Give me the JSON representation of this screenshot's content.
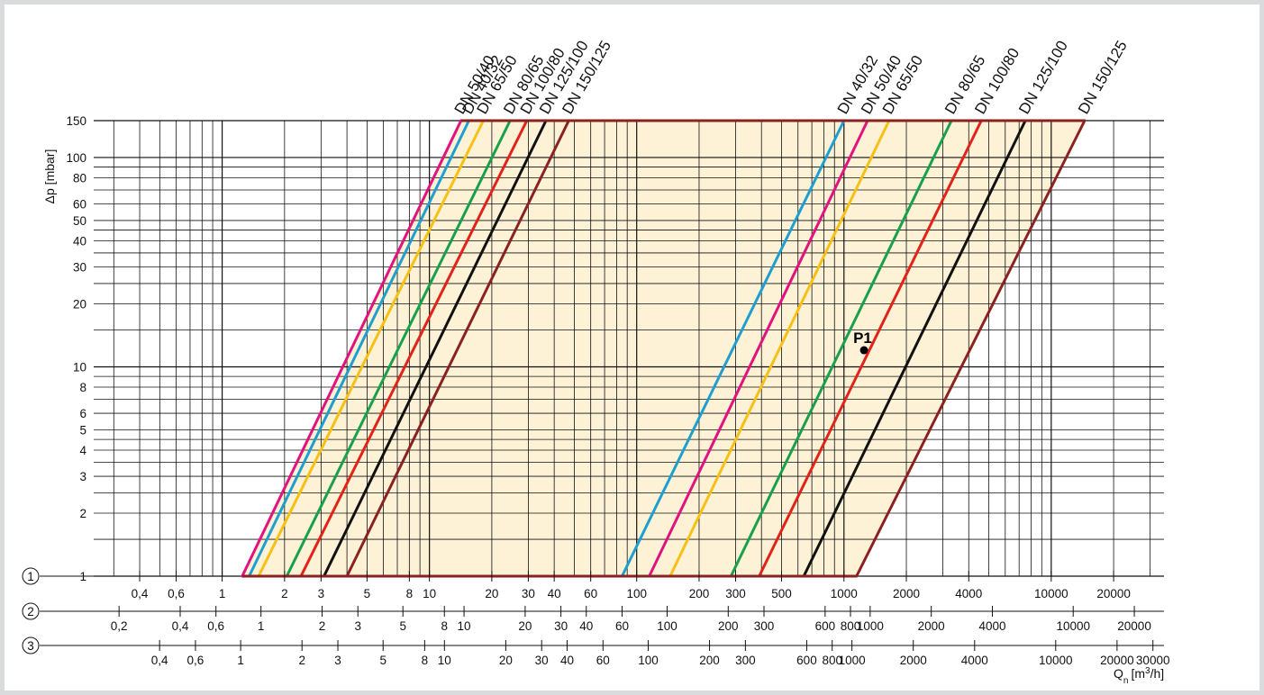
{
  "chart_data": {
    "type": "line",
    "ylabel": "Δp [mbar]",
    "xlabel": "Q",
    "xlabel_sub": "n",
    "xlabel_unit": "[m",
    "xlabel_sup": "3",
    "xlabel_tail": "/h]",
    "y_scale": "log",
    "ylim": [
      1,
      150
    ],
    "y_tick_labels": [
      "1",
      "2",
      "3",
      "4",
      "5",
      "6",
      "8",
      "10",
      "20",
      "30",
      "40",
      "50",
      "60",
      "80",
      "100",
      "150"
    ],
    "y_tick_values": [
      1,
      2,
      3,
      4,
      5,
      6,
      8,
      10,
      20,
      30,
      40,
      50,
      60,
      80,
      100,
      150
    ],
    "grid": true,
    "shaded_area_color": "#fdf1d6",
    "scale_markers": [
      "1",
      "2",
      "3"
    ],
    "x_scales": [
      {
        "marker": "1",
        "range": [
          0.24,
          35000
        ],
        "labels": [
          "0,4",
          "0,6",
          "1",
          "2",
          "3",
          "5",
          "8",
          "10",
          "20",
          "30",
          "40",
          "60",
          "100",
          "200",
          "300",
          "500",
          "1000",
          "2000",
          "4000",
          "10000",
          "20000"
        ],
        "values": [
          0.4,
          0.6,
          1,
          2,
          3,
          5,
          8,
          10,
          20,
          30,
          40,
          60,
          100,
          200,
          300,
          500,
          1000,
          2000,
          4000,
          10000,
          20000
        ]
      },
      {
        "marker": "2",
        "range": [
          0.15,
          28000
        ],
        "labels": [
          "0,2",
          "0,4",
          "0,6",
          "1",
          "2",
          "3",
          "5",
          "8",
          "10",
          "20",
          "30",
          "40",
          "60",
          "100",
          "200",
          "300",
          "600",
          "800",
          "1000",
          "2000",
          "4000",
          "10000",
          "20000"
        ],
        "values": [
          0.2,
          0.4,
          0.6,
          1,
          2,
          3,
          5,
          8,
          10,
          20,
          30,
          40,
          60,
          100,
          200,
          300,
          600,
          800,
          1000,
          2000,
          4000,
          10000,
          20000
        ]
      },
      {
        "marker": "3",
        "range": [
          0.19,
          34000
        ],
        "labels": [
          "0,4",
          "0,6",
          "1",
          "2",
          "3",
          "5",
          "8",
          "10",
          "20",
          "30",
          "40",
          "60",
          "100",
          "200",
          "300",
          "600",
          "800",
          "1000",
          "2000",
          "4000",
          "10000",
          "20000",
          "30000"
        ],
        "values": [
          0.4,
          0.6,
          1,
          2,
          3,
          5,
          8,
          10,
          20,
          30,
          40,
          60,
          100,
          200,
          300,
          600,
          800,
          1000,
          2000,
          4000,
          10000,
          20000,
          30000
        ]
      }
    ],
    "series": [
      {
        "name": "DN 50/40",
        "color": "#e0137f",
        "x_at_1": 1.25,
        "x_at_150": 14.2
      },
      {
        "name": "DN 40/32",
        "color": "#1e9fd0",
        "x_at_1": 1.35,
        "x_at_150": 15.5
      },
      {
        "name": "DN 65/50",
        "color": "#f6c114",
        "x_at_1": 1.5,
        "x_at_150": 18.2
      },
      {
        "name": "DN 80/65",
        "color": "#18a04c",
        "x_at_1": 2.05,
        "x_at_150": 24.5
      },
      {
        "name": "DN 100/80",
        "color": "#e2231a",
        "x_at_1": 2.4,
        "x_at_150": 29.5
      },
      {
        "name": "DN 125/100",
        "color": "#111111",
        "x_at_1": 3.1,
        "x_at_150": 36.5
      },
      {
        "name": "DN 150/125",
        "color": "#8b2222",
        "x_at_1": 4.0,
        "x_at_150": 47.0
      },
      {
        "name": "DN 40/32",
        "color": "#1e9fd0",
        "x_at_1": 85,
        "x_at_150": 1000
      },
      {
        "name": "DN 50/40",
        "color": "#e0137f",
        "x_at_1": 115,
        "x_at_150": 1300
      },
      {
        "name": "DN 65/50",
        "color": "#f6c114",
        "x_at_1": 145,
        "x_at_150": 1650
      },
      {
        "name": "DN 80/65",
        "color": "#18a04c",
        "x_at_1": 285,
        "x_at_150": 3300
      },
      {
        "name": "DN 100/80",
        "color": "#e2231a",
        "x_at_1": 390,
        "x_at_150": 4600
      },
      {
        "name": "DN 125/100",
        "color": "#111111",
        "x_at_1": 640,
        "x_at_150": 7500
      },
      {
        "name": "DN 150/125",
        "color": "#8b2222",
        "x_at_1": 1150,
        "x_at_150": 14500
      }
    ],
    "annotations": [
      {
        "label": "P1",
        "x": 1250,
        "y": 12
      }
    ]
  }
}
